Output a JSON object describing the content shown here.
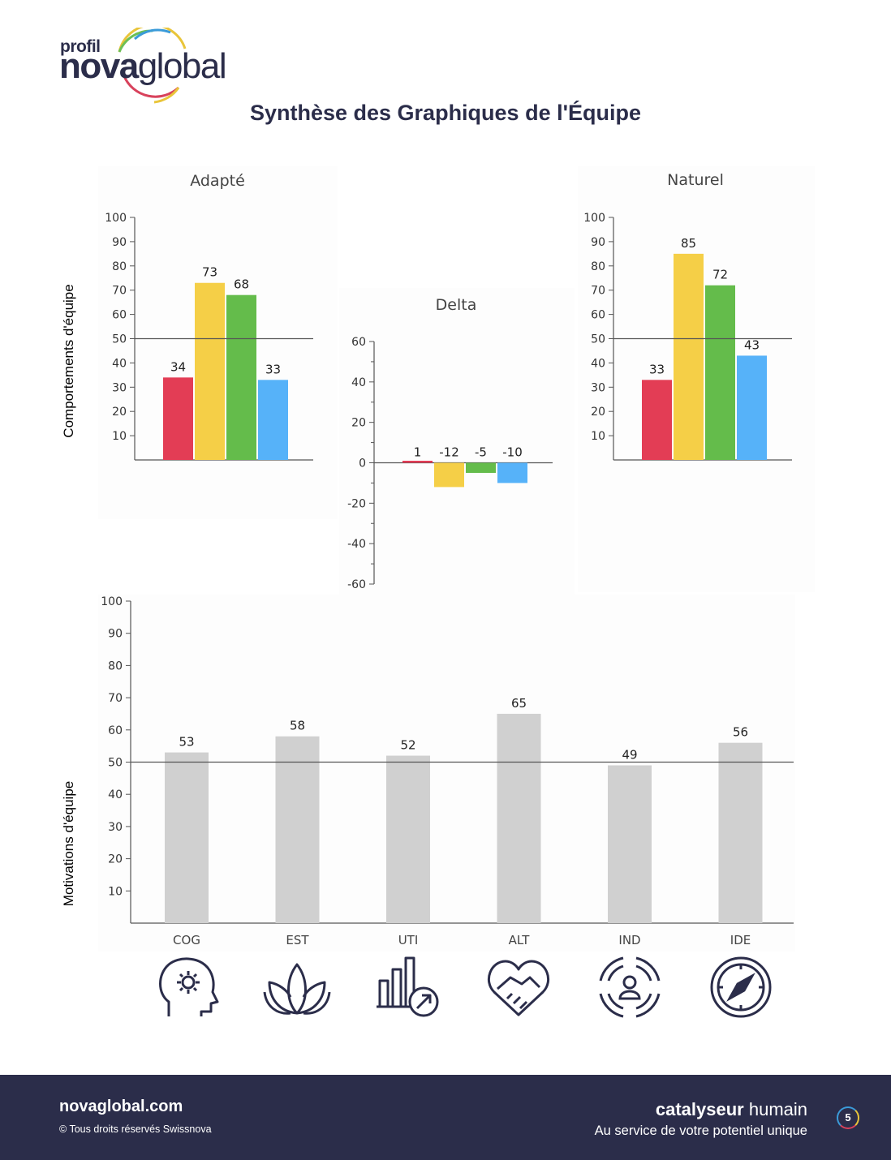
{
  "logo": {
    "line1": "profil",
    "nova": "nova",
    "global": "global"
  },
  "page_title": "Synthèse des Graphiques de l'Équipe",
  "side_labels": {
    "behaviours": "Comportements d'équipe",
    "motivations": "Motivations d'équipe"
  },
  "colors": {
    "red": "#e33d55",
    "yellow": "#f5cf47",
    "green": "#64bc4b",
    "blue": "#56b2f9",
    "grey": "#d0d0d0",
    "navy": "#2b2d4a"
  },
  "chart_data": [
    {
      "id": "adapte",
      "type": "bar",
      "title": "Adapté",
      "values": [
        34,
        73,
        68,
        33
      ],
      "bar_colors": [
        "#e33d55",
        "#f5cf47",
        "#64bc4b",
        "#56b2f9"
      ],
      "ylim": [
        0,
        100
      ],
      "yticks": [
        10,
        20,
        30,
        40,
        50,
        60,
        70,
        80,
        90,
        100
      ],
      "reference_line": 50
    },
    {
      "id": "delta",
      "type": "bar",
      "title": "Delta",
      "values": [
        1,
        -12,
        -5,
        -10
      ],
      "bar_colors": [
        "#e33d55",
        "#f5cf47",
        "#64bc4b",
        "#56b2f9"
      ],
      "ylim": [
        -60,
        60
      ],
      "yticks": [
        -60,
        -40,
        -20,
        0,
        20,
        40,
        60
      ]
    },
    {
      "id": "naturel",
      "type": "bar",
      "title": "Naturel",
      "values": [
        33,
        85,
        72,
        43
      ],
      "bar_colors": [
        "#e33d55",
        "#f5cf47",
        "#64bc4b",
        "#56b2f9"
      ],
      "ylim": [
        0,
        100
      ],
      "yticks": [
        10,
        20,
        30,
        40,
        50,
        60,
        70,
        80,
        90,
        100
      ],
      "reference_line": 50
    },
    {
      "id": "motivations",
      "type": "bar",
      "title": "",
      "categories": [
        "COG",
        "EST",
        "UTI",
        "ALT",
        "IND",
        "IDE"
      ],
      "values": [
        53,
        58,
        52,
        65,
        49,
        56
      ],
      "bar_color": "#d0d0d0",
      "ylim": [
        0,
        100
      ],
      "yticks": [
        10,
        20,
        30,
        40,
        50,
        60,
        70,
        80,
        90,
        100
      ],
      "reference_line": 50,
      "category_icons": [
        "head-gear-icon",
        "lotus-icon",
        "bar-chart-growth-icon",
        "heart-handshake-icon",
        "person-target-icon",
        "compass-icon"
      ]
    }
  ],
  "footer": {
    "site": "novaglobal.com",
    "copyright": "© Tous droits réservés Swissnova",
    "tagline_bold": "catalyseur",
    "tagline_rest": "humain",
    "subtitle": "Au service de votre potentiel unique",
    "page_number": "5"
  }
}
